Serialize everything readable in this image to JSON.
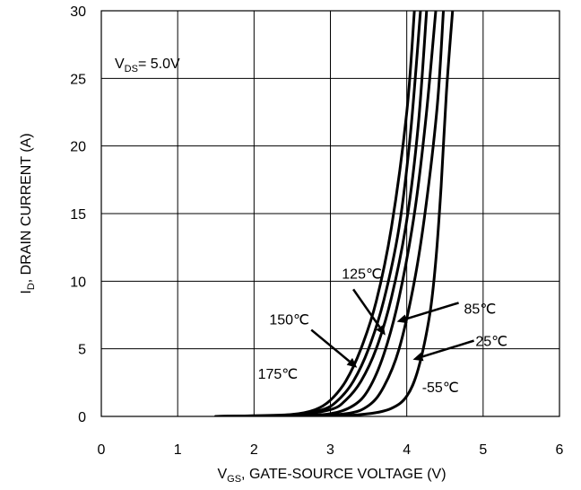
{
  "chart_data": {
    "type": "line",
    "xlabel": {
      "main": "V",
      "sub": "GS",
      "rest": ", GATE-SOURCE VOLTAGE (V)"
    },
    "ylabel": {
      "main": "I",
      "sub": "D",
      "rest": ", DRAIN CURRENT (A)"
    },
    "xlim": [
      0,
      6
    ],
    "ylim": [
      0,
      30
    ],
    "xticks": [
      0,
      1,
      2,
      3,
      4,
      5,
      6
    ],
    "yticks": [
      0,
      5,
      10,
      15,
      20,
      25,
      30
    ],
    "grid": true,
    "condition": {
      "main": "V",
      "sub": "DS",
      "rest": "= 5.0V"
    },
    "series": [
      {
        "name": "175℃",
        "x": [
          1.5,
          2.0,
          2.5,
          2.8,
          3.0,
          3.2,
          3.4,
          3.6,
          3.8,
          4.0,
          4.1
        ],
        "y": [
          0,
          0.05,
          0.15,
          0.5,
          1.2,
          2.6,
          5.0,
          8.5,
          14.0,
          22.5,
          30
        ]
      },
      {
        "name": "150℃",
        "x": [
          1.5,
          2.0,
          2.5,
          2.9,
          3.1,
          3.3,
          3.5,
          3.7,
          3.9,
          4.05,
          4.18
        ],
        "y": [
          0,
          0.04,
          0.1,
          0.5,
          1.2,
          2.6,
          5.0,
          8.6,
          14.0,
          21.0,
          30
        ]
      },
      {
        "name": "125℃",
        "x": [
          1.5,
          2.0,
          2.5,
          3.0,
          3.2,
          3.4,
          3.6,
          3.8,
          4.0,
          4.15,
          4.26
        ],
        "y": [
          0,
          0.03,
          0.08,
          0.5,
          1.2,
          2.6,
          5.0,
          8.8,
          14.5,
          21.5,
          30
        ]
      },
      {
        "name": "85℃",
        "x": [
          1.5,
          2.5,
          3.0,
          3.3,
          3.5,
          3.7,
          3.9,
          4.1,
          4.25,
          4.38
        ],
        "y": [
          0,
          0.05,
          0.2,
          0.8,
          2.0,
          4.6,
          8.8,
          15.0,
          22.0,
          30
        ]
      },
      {
        "name": "25℃",
        "x": [
          1.5,
          2.5,
          3.2,
          3.5,
          3.7,
          3.9,
          4.1,
          4.25,
          4.4,
          4.48
        ],
        "y": [
          0,
          0.02,
          0.2,
          0.8,
          2.2,
          5.0,
          10.0,
          15.5,
          23.0,
          30
        ]
      },
      {
        "name": "-55℃",
        "x": [
          1.5,
          3.0,
          3.5,
          3.8,
          4.0,
          4.15,
          4.3,
          4.38,
          4.45,
          4.52,
          4.6
        ],
        "y": [
          0,
          0.05,
          0.2,
          0.6,
          1.5,
          3.5,
          7.5,
          11.5,
          17.0,
          24.0,
          30
        ]
      }
    ],
    "annotations": [
      {
        "label": "125℃",
        "tx": 3.15,
        "ty": 10.2,
        "ax1": 3.3,
        "ay1": 9.4,
        "ax2": 3.72,
        "ay2": 6.0
      },
      {
        "label": "85℃",
        "tx": 4.75,
        "ty": 7.6,
        "ax1": 4.68,
        "ay1": 8.4,
        "ax2": 3.87,
        "ay2": 7.0
      },
      {
        "label": "150℃",
        "tx": 2.2,
        "ty": 6.8,
        "ax1": 2.75,
        "ay1": 6.4,
        "ax2": 3.35,
        "ay2": 3.6
      },
      {
        "label": "25℃",
        "tx": 4.9,
        "ty": 5.2,
        "ax1": 4.88,
        "ay1": 5.6,
        "ax2": 4.08,
        "ay2": 4.2
      },
      {
        "label": "175℃",
        "tx": 2.05,
        "ty": 2.8,
        "ax1": null,
        "ay1": null,
        "ax2": null,
        "ay2": null
      },
      {
        "label": "-55℃",
        "tx": 4.2,
        "ty": 1.8,
        "ax1": null,
        "ay1": null,
        "ax2": null,
        "ay2": null
      }
    ]
  }
}
